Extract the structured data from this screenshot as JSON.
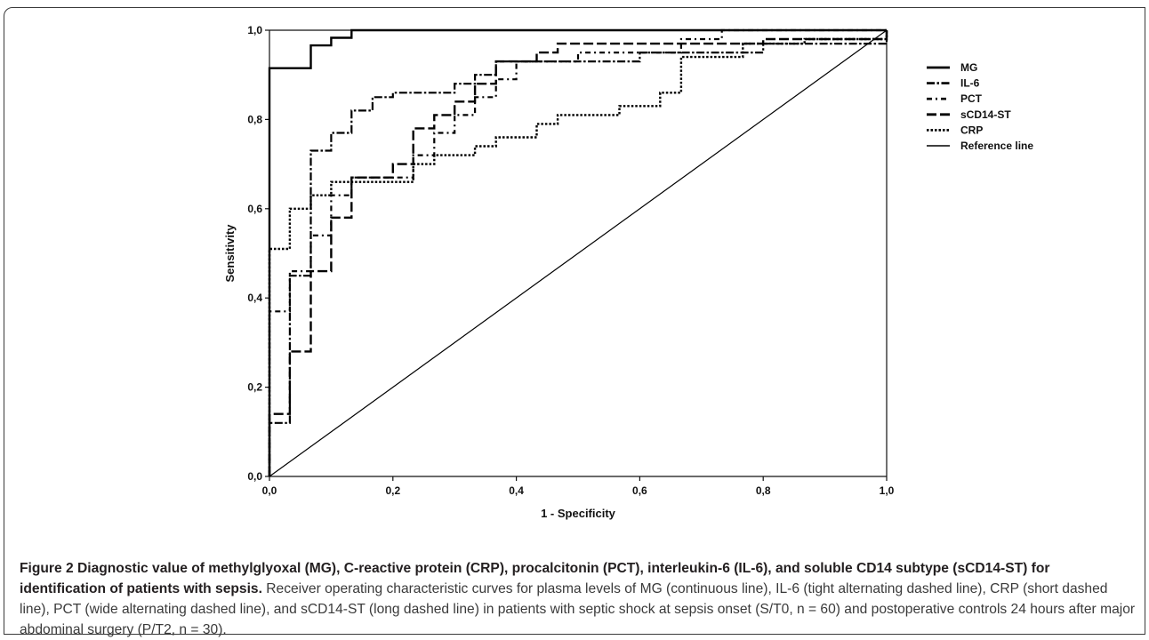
{
  "chart_data": {
    "type": "line",
    "xlabel": "1 - Specificity",
    "ylabel": "Sensitivity",
    "xlim": [
      0,
      1
    ],
    "ylim": [
      0,
      1
    ],
    "x_ticks": [
      "0,0",
      "0,2",
      "0,4",
      "0,6",
      "0,8",
      "1,0"
    ],
    "y_ticks": [
      "0,0",
      "0,2",
      "0,4",
      "0,6",
      "0,8",
      "1,0"
    ],
    "grid": false,
    "legend_position": "right",
    "series": [
      {
        "name": "MG",
        "dash": "solid",
        "color": "#000000",
        "points": [
          [
            0,
            0
          ],
          [
            0,
            0.915
          ],
          [
            0.067,
            0.915
          ],
          [
            0.067,
            0.966
          ],
          [
            0.1,
            0.966
          ],
          [
            0.1,
            0.983
          ],
          [
            0.133,
            0.983
          ],
          [
            0.133,
            1
          ],
          [
            1,
            1
          ]
        ]
      },
      {
        "name": "IL-6",
        "dash": "tight-alternating",
        "color": "#000000",
        "points": [
          [
            0,
            0
          ],
          [
            0,
            0.12
          ],
          [
            0.033,
            0.12
          ],
          [
            0.033,
            0.45
          ],
          [
            0.067,
            0.45
          ],
          [
            0.067,
            0.73
          ],
          [
            0.1,
            0.73
          ],
          [
            0.1,
            0.77
          ],
          [
            0.133,
            0.77
          ],
          [
            0.133,
            0.82
          ],
          [
            0.167,
            0.82
          ],
          [
            0.167,
            0.85
          ],
          [
            0.2,
            0.85
          ],
          [
            0.2,
            0.86
          ],
          [
            0.3,
            0.86
          ],
          [
            0.3,
            0.88
          ],
          [
            0.333,
            0.88
          ],
          [
            0.333,
            0.9
          ],
          [
            0.367,
            0.9
          ],
          [
            0.367,
            0.93
          ],
          [
            0.6,
            0.93
          ],
          [
            0.6,
            0.95
          ],
          [
            0.8,
            0.95
          ],
          [
            0.8,
            0.97
          ],
          [
            1,
            0.97
          ],
          [
            1,
            1
          ]
        ]
      },
      {
        "name": "PCT",
        "dash": "wide-alternating",
        "color": "#000000",
        "points": [
          [
            0,
            0
          ],
          [
            0,
            0.37
          ],
          [
            0.033,
            0.37
          ],
          [
            0.033,
            0.46
          ],
          [
            0.067,
            0.46
          ],
          [
            0.067,
            0.54
          ],
          [
            0.1,
            0.54
          ],
          [
            0.1,
            0.63
          ],
          [
            0.133,
            0.63
          ],
          [
            0.133,
            0.67
          ],
          [
            0.233,
            0.67
          ],
          [
            0.233,
            0.72
          ],
          [
            0.267,
            0.72
          ],
          [
            0.267,
            0.77
          ],
          [
            0.3,
            0.77
          ],
          [
            0.3,
            0.81
          ],
          [
            0.333,
            0.81
          ],
          [
            0.333,
            0.85
          ],
          [
            0.367,
            0.85
          ],
          [
            0.367,
            0.89
          ],
          [
            0.4,
            0.89
          ],
          [
            0.4,
            0.93
          ],
          [
            0.5,
            0.93
          ],
          [
            0.5,
            0.95
          ],
          [
            0.667,
            0.95
          ],
          [
            0.667,
            0.98
          ],
          [
            0.733,
            0.98
          ],
          [
            0.733,
            1
          ],
          [
            1,
            1
          ]
        ]
      },
      {
        "name": "sCD14-ST",
        "dash": "long-dashed",
        "color": "#000000",
        "points": [
          [
            0,
            0
          ],
          [
            0,
            0.14
          ],
          [
            0.033,
            0.14
          ],
          [
            0.033,
            0.28
          ],
          [
            0.067,
            0.28
          ],
          [
            0.067,
            0.46
          ],
          [
            0.1,
            0.46
          ],
          [
            0.1,
            0.58
          ],
          [
            0.133,
            0.58
          ],
          [
            0.133,
            0.67
          ],
          [
            0.2,
            0.67
          ],
          [
            0.2,
            0.7
          ],
          [
            0.233,
            0.7
          ],
          [
            0.233,
            0.78
          ],
          [
            0.267,
            0.78
          ],
          [
            0.267,
            0.81
          ],
          [
            0.3,
            0.81
          ],
          [
            0.3,
            0.84
          ],
          [
            0.333,
            0.84
          ],
          [
            0.333,
            0.88
          ],
          [
            0.367,
            0.88
          ],
          [
            0.367,
            0.93
          ],
          [
            0.433,
            0.93
          ],
          [
            0.433,
            0.95
          ],
          [
            0.467,
            0.95
          ],
          [
            0.467,
            0.97
          ],
          [
            0.8,
            0.97
          ],
          [
            0.8,
            0.98
          ],
          [
            1,
            0.98
          ],
          [
            1,
            1
          ]
        ]
      },
      {
        "name": "CRP",
        "dash": "short-dashed",
        "color": "#000000",
        "points": [
          [
            0,
            0
          ],
          [
            0,
            0.51
          ],
          [
            0.033,
            0.51
          ],
          [
            0.033,
            0.6
          ],
          [
            0.067,
            0.6
          ],
          [
            0.067,
            0.63
          ],
          [
            0.1,
            0.63
          ],
          [
            0.1,
            0.66
          ],
          [
            0.233,
            0.66
          ],
          [
            0.233,
            0.7
          ],
          [
            0.267,
            0.7
          ],
          [
            0.267,
            0.72
          ],
          [
            0.333,
            0.72
          ],
          [
            0.333,
            0.74
          ],
          [
            0.367,
            0.74
          ],
          [
            0.367,
            0.76
          ],
          [
            0.433,
            0.76
          ],
          [
            0.433,
            0.79
          ],
          [
            0.467,
            0.79
          ],
          [
            0.467,
            0.81
          ],
          [
            0.567,
            0.81
          ],
          [
            0.567,
            0.83
          ],
          [
            0.633,
            0.83
          ],
          [
            0.633,
            0.86
          ],
          [
            0.667,
            0.86
          ],
          [
            0.667,
            0.94
          ],
          [
            0.767,
            0.94
          ],
          [
            0.767,
            0.97
          ],
          [
            0.867,
            0.97
          ],
          [
            0.867,
            0.98
          ],
          [
            1,
            0.98
          ],
          [
            1,
            1
          ]
        ]
      },
      {
        "name": "Reference line",
        "dash": "thin-solid",
        "color": "#000000",
        "points": [
          [
            0,
            0
          ],
          [
            1,
            1
          ]
        ]
      }
    ]
  },
  "caption": {
    "bold": "Figure 2 Diagnostic value of methylglyoxal (MG), C-reactive protein (CRP), procalcitonin (PCT), interleukin-6 (IL-6), and soluble CD14 subtype (sCD14-ST) for identification of patients with sepsis.",
    "text": " Receiver operating characteristic curves for plasma levels of MG (continuous line), IL-6 (tight alternating dashed line), CRP (short dashed line), PCT (wide alternating dashed line), and sCD14-ST (long dashed line) in patients with septic shock at sepsis onset (S/T0, n = 60) and postoperative controls 24 hours after major abdominal surgery (P/T2, n = 30)."
  }
}
